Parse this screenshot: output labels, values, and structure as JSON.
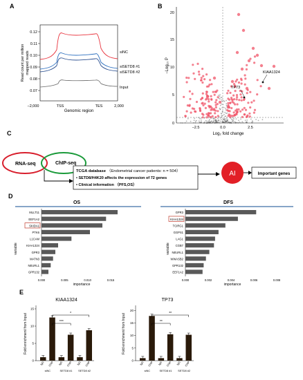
{
  "panels": {
    "A": "A",
    "B": "B",
    "C": "C",
    "D": "D",
    "E": "E"
  },
  "panelA": {
    "ylabel_line1": "Read count per million",
    "ylabel_line2": "mapped reads",
    "xlabel": "Genomic region",
    "yticks": [
      "0.12",
      "0.11",
      "0.10",
      "0.09",
      "0.08",
      "0.07"
    ],
    "xticks": [
      "−2,000",
      "TSS",
      "TES",
      "2,000"
    ],
    "legend": [
      "siNC",
      "siSETD8 #1",
      "siSETD8 #2",
      "Input"
    ],
    "colors": {
      "siNC": "#e8323c",
      "siSETD8_1": "#2c6fbf",
      "siSETD8_2": "#2b4f8f",
      "Input": "#666666"
    }
  },
  "panelB": {
    "ylabel": "−Log₁₀ P",
    "xlabel": "Log₂ fold change",
    "yticks": [
      "20",
      "15",
      "10",
      "5",
      "0"
    ],
    "xticks": [
      "−2.5",
      "0.0",
      "2.5"
    ],
    "labels": [
      "TP73",
      "KIAA1324"
    ]
  },
  "panelC": {
    "rnaseq": "RNA-seq",
    "chipseq": "ChIP-seq",
    "tcga_title": "TCGA database",
    "tcga_detail": "（Endometrial cancer patients: n = 504）",
    "bullet1": "SETD8/H4K20 affects the expression of 72 genes",
    "bullet2": "Clinical information （PFS,OS）",
    "ai": "AI",
    "result": "Important genes"
  },
  "panelD": {
    "os_title": "OS",
    "dfs_title": "DFS",
    "ylabel": "variable",
    "xlabel": "importance",
    "os_genes": [
      "MLLT11",
      "EEF1A2",
      "SKIDA1",
      "PTK6",
      "L1CAM",
      "KIAA1324",
      "GPR3",
      "MATN3",
      "NEURL1",
      "GPR132"
    ],
    "os_values": [
      0.0165,
      0.014,
      0.0132,
      0.0105,
      0.0065,
      0.0036,
      0.003,
      0.0025,
      0.002,
      0.0015
    ],
    "os_xticks": [
      "0.000",
      "0.005",
      "0.010",
      "0.015"
    ],
    "dfs_genes": [
      "GPR3",
      "KIAA1324",
      "TCIRG1",
      "GGPS1",
      "LAG1",
      "CGB7",
      "NEURL1",
      "WWASB2",
      "GPR132",
      "EEF1A2"
    ],
    "dfs_values": [
      0.0062,
      0.0046,
      0.0035,
      0.0029,
      0.0026,
      0.0025,
      0.0021,
      0.0018,
      0.0016,
      0.0015
    ],
    "dfs_xticks": [
      "0.000",
      "0.002",
      "0.004",
      "0.006",
      "0.008"
    ]
  },
  "panelE": {
    "ylabel": "Fold enrichment from Input",
    "kiaa_title": "KIAA1324",
    "tp73_title": "TP73",
    "kiaa_yticks": [
      "0",
      "5",
      "10",
      "15"
    ],
    "tp73_yticks": [
      "0",
      "5",
      "10",
      "15",
      "20"
    ],
    "bar_labels": [
      "IgG",
      "ChIP",
      "IgG",
      "ChIP",
      "IgG",
      "ChIP"
    ],
    "groups": [
      "siNC",
      "SETD8 #1",
      "SETD8 #2"
    ],
    "kiaa_values": [
      1,
      12.5,
      1,
      7.5,
      1,
      8.8
    ],
    "tp73_values": [
      1,
      17.8,
      1,
      10.5,
      1,
      10.3
    ],
    "kiaa_sig": [
      "***",
      "*"
    ],
    "tp73_sig": [
      "**",
      "**"
    ]
  }
}
